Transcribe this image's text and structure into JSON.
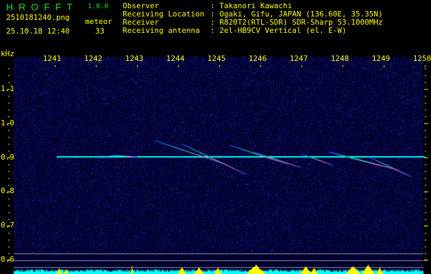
{
  "app": {
    "name": "HROFFT",
    "version": "1.0.0"
  },
  "file": {
    "name": "2510181240.png",
    "datetime": "25.10.18 12:40"
  },
  "meteor": {
    "label": "meteor",
    "count": "33"
  },
  "info": [
    {
      "key": "Observer",
      "value": ": Takanori Kawachi"
    },
    {
      "key": "Receiving Location",
      "value": ": Ogaki, Gifu, JAPAN (136.60E, 35.35N)"
    },
    {
      "key": "Receiver",
      "value": ": R820T2(RTL-SDR) SDR-Sharp 53.1000MHz"
    },
    {
      "key": "Receiving antenna",
      "value": ": 2el-HB9CV Vertical (el. E-W)"
    }
  ],
  "axis": {
    "x_unit": "kHz",
    "x_ticks": [
      "1241",
      "1242",
      "1243",
      "1244",
      "1245",
      "1246",
      "1247",
      "1248",
      "1249",
      "1250"
    ],
    "y_ticks": [
      "1.1",
      "1.0",
      "0.9",
      "0.8",
      "0.7",
      "0.6"
    ]
  },
  "colors": {
    "text": "#ffff00",
    "title": "#22dd22",
    "carrier": "#00ffff",
    "histogram": "#00ffff",
    "burst": "#ffff00",
    "background_noise": "#1a1a8c"
  }
}
